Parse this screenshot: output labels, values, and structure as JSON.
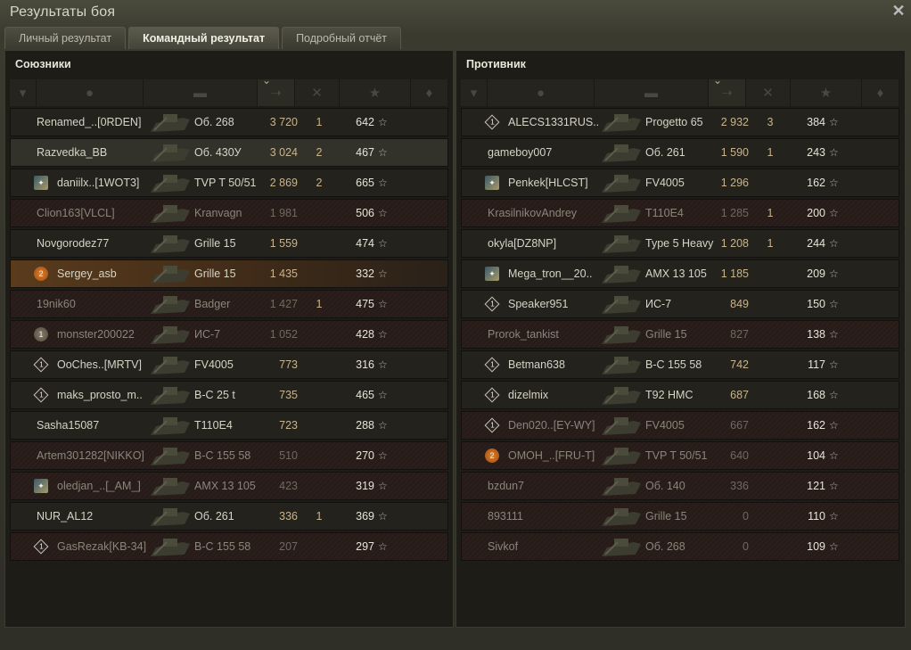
{
  "window": {
    "title": "Результаты боя",
    "close_icon": "close-icon"
  },
  "tabs": [
    {
      "label": "Личный результат",
      "active": false
    },
    {
      "label": "Командный результат",
      "active": true
    },
    {
      "label": "Подробный отчёт",
      "active": false
    }
  ],
  "columns": [
    "platoon-icon",
    "player-icon",
    "tank-icon",
    "damage-icon",
    "kills-icon",
    "xp-star-icon",
    "medal-icon"
  ],
  "sort_column": "damage",
  "colors": {
    "damage": "#c9b48e",
    "dead_row": "#2b1f1b",
    "self_row": "#5a3b1c"
  },
  "allies": {
    "title": "Союзники",
    "rows": [
      {
        "name": "Renamed_..[0RDEN]",
        "icon": "",
        "tank": "Об. 268",
        "damage": "3 720",
        "kills": "1",
        "xp": "642",
        "state": "alive"
      },
      {
        "name": "Razvedka_BB",
        "icon": "",
        "tank": "Об. 430У",
        "damage": "3 024",
        "kills": "2",
        "xp": "467",
        "state": "hover"
      },
      {
        "name": "daniilx..[1WOT3]",
        "icon": "emblem",
        "tank": "TVP T 50/51",
        "damage": "2 869",
        "kills": "2",
        "xp": "665",
        "state": "alive"
      },
      {
        "name": "Clion163[VLCL]",
        "icon": "",
        "tank": "Kranvagn",
        "damage": "1 981",
        "kills": "",
        "xp": "506",
        "state": "dead"
      },
      {
        "name": "Novgorodez77",
        "icon": "",
        "tank": "Grille 15",
        "damage": "1 559",
        "kills": "",
        "xp": "474",
        "state": "alive"
      },
      {
        "name": "Sergey_asb",
        "icon": "medal-2",
        "tank": "Grille 15",
        "damage": "1 435",
        "kills": "",
        "xp": "332",
        "state": "self"
      },
      {
        "name": "19nik60",
        "icon": "",
        "tank": "Badger",
        "damage": "1 427",
        "kills": "1",
        "xp": "475",
        "state": "dead"
      },
      {
        "name": "monster200022",
        "icon": "medal-1",
        "tank": "ИС-7",
        "damage": "1 052",
        "kills": "",
        "xp": "428",
        "state": "dead"
      },
      {
        "name": "OoChes..[MRTV]",
        "icon": "class-1",
        "tank": "FV4005",
        "damage": "773",
        "kills": "",
        "xp": "316",
        "state": "alive"
      },
      {
        "name": "maks_prosto_m..",
        "icon": "class-1",
        "tank": "B-C 25 t",
        "damage": "735",
        "kills": "",
        "xp": "465",
        "state": "alive"
      },
      {
        "name": "Sasha15087",
        "icon": "",
        "tank": "T110E4",
        "damage": "723",
        "kills": "",
        "xp": "288",
        "state": "alive"
      },
      {
        "name": "Artem301282[NIKKO]",
        "icon": "",
        "tank": "B-C 155 58",
        "damage": "510",
        "kills": "",
        "xp": "270",
        "state": "dead"
      },
      {
        "name": "oledjan_..[_AM_]",
        "icon": "emblem",
        "tank": "AMX 13 105",
        "damage": "423",
        "kills": "",
        "xp": "319",
        "state": "dead"
      },
      {
        "name": "NUR_AL12",
        "icon": "",
        "tank": "Об. 261",
        "damage": "336",
        "kills": "1",
        "xp": "369",
        "state": "alive"
      },
      {
        "name": "GasRezak[KB-34]",
        "icon": "class-1",
        "tank": "B-C 155 58",
        "damage": "207",
        "kills": "",
        "xp": "297",
        "state": "dead"
      }
    ]
  },
  "enemies": {
    "title": "Противник",
    "rows": [
      {
        "name": "ALECS1331RUS..",
        "icon": "class-1",
        "tank": "Progetto 65",
        "damage": "2 932",
        "kills": "3",
        "xp": "384",
        "state": "alive"
      },
      {
        "name": "gameboy007",
        "icon": "",
        "tank": "Об. 261",
        "damage": "1 590",
        "kills": "1",
        "xp": "243",
        "state": "alive"
      },
      {
        "name": "Penkek[HLCST]",
        "icon": "emblem",
        "tank": "FV4005",
        "damage": "1 296",
        "kills": "",
        "xp": "162",
        "state": "alive"
      },
      {
        "name": "KrasilnikovAndrey",
        "icon": "",
        "tank": "T110E4",
        "damage": "1 285",
        "kills": "1",
        "xp": "200",
        "state": "dead"
      },
      {
        "name": "okyla[DZ8NP]",
        "icon": "",
        "tank": "Type 5 Heavy",
        "damage": "1 208",
        "kills": "1",
        "xp": "244",
        "state": "alive"
      },
      {
        "name": "Mega_tron__20..",
        "icon": "emblem",
        "tank": "AMX 13 105",
        "damage": "1 185",
        "kills": "",
        "xp": "209",
        "state": "alive"
      },
      {
        "name": "Speaker951",
        "icon": "class-1",
        "tank": "ИС-7",
        "damage": "849",
        "kills": "",
        "xp": "150",
        "state": "alive"
      },
      {
        "name": "Prorok_tankist",
        "icon": "",
        "tank": "Grille 15",
        "damage": "827",
        "kills": "",
        "xp": "138",
        "state": "dead"
      },
      {
        "name": "Betman638",
        "icon": "class-1",
        "tank": "B-C 155 58",
        "damage": "742",
        "kills": "",
        "xp": "117",
        "state": "alive"
      },
      {
        "name": "dizelmix",
        "icon": "class-1",
        "tank": "T92 HMC",
        "damage": "687",
        "kills": "",
        "xp": "168",
        "state": "alive"
      },
      {
        "name": "Den020..[EY-WY]",
        "icon": "class-1",
        "tank": "FV4005",
        "damage": "667",
        "kills": "",
        "xp": "162",
        "state": "dead"
      },
      {
        "name": "OMOH_..[FRU-T]",
        "icon": "medal-2",
        "tank": "TVP T 50/51",
        "damage": "640",
        "kills": "",
        "xp": "104",
        "state": "dead"
      },
      {
        "name": "bzdun7",
        "icon": "",
        "tank": "Об. 140",
        "damage": "336",
        "kills": "",
        "xp": "121",
        "state": "dead"
      },
      {
        "name": "893111",
        "icon": "",
        "tank": "Grille 15",
        "damage": "0",
        "kills": "",
        "xp": "110",
        "state": "dead"
      },
      {
        "name": "Sivkof",
        "icon": "",
        "tank": "Об. 268",
        "damage": "0",
        "kills": "",
        "xp": "109",
        "state": "dead"
      }
    ]
  }
}
